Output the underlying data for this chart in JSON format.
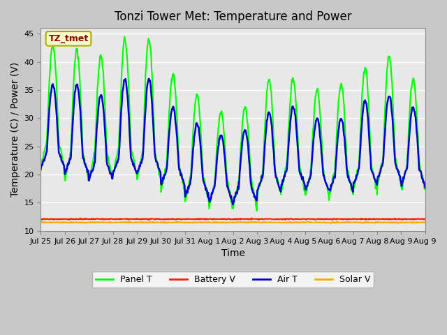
{
  "title": "Tonzi Tower Met: Temperature and Power",
  "xlabel": "Time",
  "ylabel": "Temperature (C) / Power (V)",
  "ylim": [
    10,
    46
  ],
  "yticks": [
    10,
    15,
    20,
    25,
    30,
    35,
    40,
    45
  ],
  "plot_bg_color": "#e8e8e8",
  "fig_bg_color": "#c8c8c8",
  "annotation_text": "TZ_tmet",
  "annotation_color": "#8b0000",
  "annotation_bg": "#ffffcc",
  "annotation_border": "#aaaa00",
  "tick_labels": [
    "Jul 25",
    "Jul 26",
    "Jul 27",
    "Jul 28",
    "Jul 29",
    "Jul 30",
    "Jul 31",
    "Aug 1",
    "Aug 2",
    "Aug 3",
    "Aug 4",
    "Aug 5",
    "Aug 6",
    "Aug 7",
    "Aug 8",
    "Aug 9",
    "Aug 9"
  ],
  "panel_t_color": "#00ff00",
  "air_t_color": "#0000cc",
  "battery_v_color": "#ff2200",
  "solar_v_color": "#ffaa00",
  "panel_t_lw": 1.5,
  "air_t_lw": 1.8,
  "battery_v_lw": 1.5,
  "solar_v_lw": 1.5,
  "n_days": 16,
  "pts_per_day": 48,
  "p_amp_day": [
    17,
    18,
    17,
    19,
    20,
    16,
    14,
    12,
    13,
    16,
    15,
    14,
    15,
    17,
    18,
    15
  ],
  "p_base_day": [
    26,
    24,
    24,
    25,
    24,
    22,
    20,
    19,
    19,
    21,
    22,
    21,
    21,
    22,
    23,
    22
  ],
  "a_amp_day": [
    12,
    13,
    12,
    14,
    14,
    11,
    10,
    9,
    10,
    11,
    11,
    10,
    10,
    12,
    12,
    11
  ],
  "a_base_day": [
    24,
    23,
    22,
    23,
    23,
    21,
    19,
    18,
    18,
    20,
    21,
    20,
    20,
    21,
    22,
    21
  ],
  "battery_v_mean": 12.1,
  "solar_v_mean": 11.5,
  "legend_labels": [
    "Panel T",
    "Battery V",
    "Air T",
    "Solar V"
  ]
}
